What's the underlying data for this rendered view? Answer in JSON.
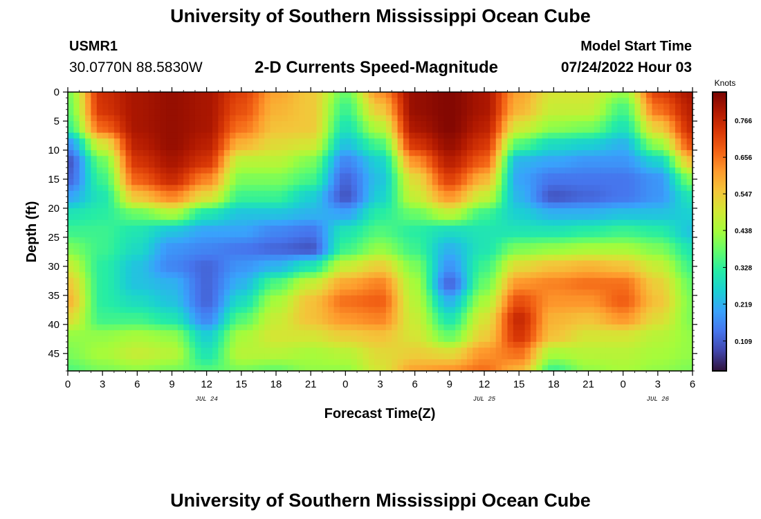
{
  "header": {
    "title": "University of Southern Mississippi Ocean Cube",
    "station": "USMR1",
    "coords": "30.0770N  88.5830W",
    "subtitle": "2-D Currents Speed-Magnitude",
    "model_start_label": "Model Start Time",
    "model_start_value": "07/24/2022 Hour 03"
  },
  "footer": {
    "title": "University of Southern Mississippi Ocean Cube"
  },
  "chart_data": {
    "type": "heatmap",
    "title": "2-D Currents Speed-Magnitude",
    "xlabel": "Forecast Time(Z)",
    "ylabel": "Depth (ft)",
    "x_ticks": [
      "0",
      "3",
      "6",
      "9",
      "12",
      "15",
      "18",
      "21",
      "0",
      "3",
      "6",
      "9",
      "12",
      "15",
      "18",
      "21",
      "0",
      "3",
      "6"
    ],
    "x_range_hours": [
      0,
      54
    ],
    "date_labels": [
      {
        "label": "JUL 24",
        "hour": 12
      },
      {
        "label": "JUL 25",
        "hour": 36
      },
      {
        "label": "JUL 26",
        "hour": 51
      }
    ],
    "y_ticks": [
      0,
      5,
      10,
      15,
      20,
      25,
      30,
      35,
      40,
      45
    ],
    "y_range_ft": [
      0,
      48
    ],
    "y_inverted": true,
    "colorbar": {
      "unit": "Knots",
      "ticks": [
        "0.766",
        "0.656",
        "0.547",
        "0.438",
        "0.328",
        "0.219",
        "0.109"
      ],
      "range": [
        0.02,
        0.85
      ],
      "colors": [
        "#30123b",
        "#4145ab",
        "#4675ed",
        "#39a2fc",
        "#1bcfd4",
        "#24eca6",
        "#61fc6c",
        "#a4fc3b",
        "#d1e834",
        "#f3c63a",
        "#fe9b2d",
        "#f36315",
        "#d93806",
        "#b11901",
        "#7a0402"
      ]
    },
    "speed_field_hours": [
      0,
      3,
      6,
      9,
      12,
      15,
      18,
      21,
      24,
      27,
      30,
      33,
      36,
      39,
      42,
      45,
      48,
      51,
      54
    ],
    "speed_field_depths_ft": [
      0,
      3,
      6,
      9,
      12,
      15,
      18,
      21,
      24,
      27,
      30,
      33,
      36,
      39,
      42,
      45,
      48
    ],
    "speed_field_knots": [
      [
        0.4,
        0.75,
        0.8,
        0.82,
        0.8,
        0.72,
        0.6,
        0.55,
        0.38,
        0.62,
        0.82,
        0.84,
        0.8,
        0.6,
        0.5,
        0.5,
        0.42,
        0.72,
        0.8
      ],
      [
        0.38,
        0.74,
        0.8,
        0.82,
        0.8,
        0.7,
        0.58,
        0.55,
        0.34,
        0.55,
        0.82,
        0.84,
        0.8,
        0.58,
        0.48,
        0.48,
        0.35,
        0.66,
        0.78
      ],
      [
        0.34,
        0.68,
        0.8,
        0.82,
        0.8,
        0.66,
        0.56,
        0.55,
        0.3,
        0.46,
        0.8,
        0.84,
        0.78,
        0.5,
        0.42,
        0.4,
        0.3,
        0.55,
        0.76
      ],
      [
        0.18,
        0.5,
        0.78,
        0.82,
        0.78,
        0.58,
        0.52,
        0.5,
        0.24,
        0.35,
        0.74,
        0.82,
        0.74,
        0.36,
        0.28,
        0.26,
        0.22,
        0.42,
        0.7
      ],
      [
        0.1,
        0.38,
        0.74,
        0.8,
        0.74,
        0.46,
        0.46,
        0.4,
        0.16,
        0.26,
        0.62,
        0.78,
        0.68,
        0.22,
        0.2,
        0.18,
        0.18,
        0.26,
        0.56
      ],
      [
        0.12,
        0.34,
        0.68,
        0.76,
        0.64,
        0.4,
        0.4,
        0.35,
        0.12,
        0.24,
        0.52,
        0.72,
        0.58,
        0.2,
        0.14,
        0.14,
        0.14,
        0.18,
        0.4
      ],
      [
        0.2,
        0.3,
        0.56,
        0.64,
        0.52,
        0.34,
        0.34,
        0.26,
        0.1,
        0.26,
        0.48,
        0.62,
        0.48,
        0.22,
        0.1,
        0.12,
        0.14,
        0.18,
        0.3
      ],
      [
        0.3,
        0.32,
        0.38,
        0.44,
        0.3,
        0.24,
        0.24,
        0.22,
        0.2,
        0.32,
        0.38,
        0.46,
        0.34,
        0.26,
        0.22,
        0.22,
        0.24,
        0.24,
        0.26
      ],
      [
        0.34,
        0.34,
        0.3,
        0.24,
        0.2,
        0.2,
        0.16,
        0.14,
        0.3,
        0.36,
        0.32,
        0.28,
        0.3,
        0.3,
        0.3,
        0.32,
        0.34,
        0.32,
        0.24
      ],
      [
        0.4,
        0.34,
        0.28,
        0.18,
        0.16,
        0.14,
        0.12,
        0.1,
        0.34,
        0.42,
        0.34,
        0.22,
        0.3,
        0.4,
        0.42,
        0.44,
        0.44,
        0.4,
        0.3
      ],
      [
        0.48,
        0.32,
        0.24,
        0.16,
        0.12,
        0.18,
        0.22,
        0.3,
        0.48,
        0.54,
        0.4,
        0.18,
        0.34,
        0.52,
        0.56,
        0.58,
        0.56,
        0.48,
        0.34
      ],
      [
        0.55,
        0.32,
        0.24,
        0.22,
        0.12,
        0.22,
        0.36,
        0.48,
        0.6,
        0.64,
        0.44,
        0.12,
        0.38,
        0.62,
        0.64,
        0.66,
        0.66,
        0.54,
        0.38
      ],
      [
        0.58,
        0.32,
        0.28,
        0.24,
        0.12,
        0.28,
        0.44,
        0.56,
        0.66,
        0.68,
        0.46,
        0.22,
        0.44,
        0.7,
        0.62,
        0.62,
        0.68,
        0.56,
        0.4
      ],
      [
        0.52,
        0.34,
        0.34,
        0.3,
        0.16,
        0.36,
        0.48,
        0.56,
        0.62,
        0.64,
        0.48,
        0.3,
        0.5,
        0.76,
        0.58,
        0.56,
        0.62,
        0.52,
        0.4
      ],
      [
        0.42,
        0.42,
        0.44,
        0.42,
        0.26,
        0.44,
        0.5,
        0.5,
        0.54,
        0.56,
        0.5,
        0.38,
        0.54,
        0.74,
        0.56,
        0.5,
        0.5,
        0.46,
        0.42
      ],
      [
        0.4,
        0.44,
        0.48,
        0.46,
        0.3,
        0.46,
        0.46,
        0.44,
        0.46,
        0.52,
        0.54,
        0.52,
        0.62,
        0.66,
        0.44,
        0.46,
        0.46,
        0.44,
        0.42
      ],
      [
        0.36,
        0.4,
        0.42,
        0.4,
        0.36,
        0.4,
        0.38,
        0.42,
        0.42,
        0.5,
        0.6,
        0.62,
        0.66,
        0.58,
        0.34,
        0.42,
        0.44,
        0.42,
        0.4
      ]
    ]
  }
}
